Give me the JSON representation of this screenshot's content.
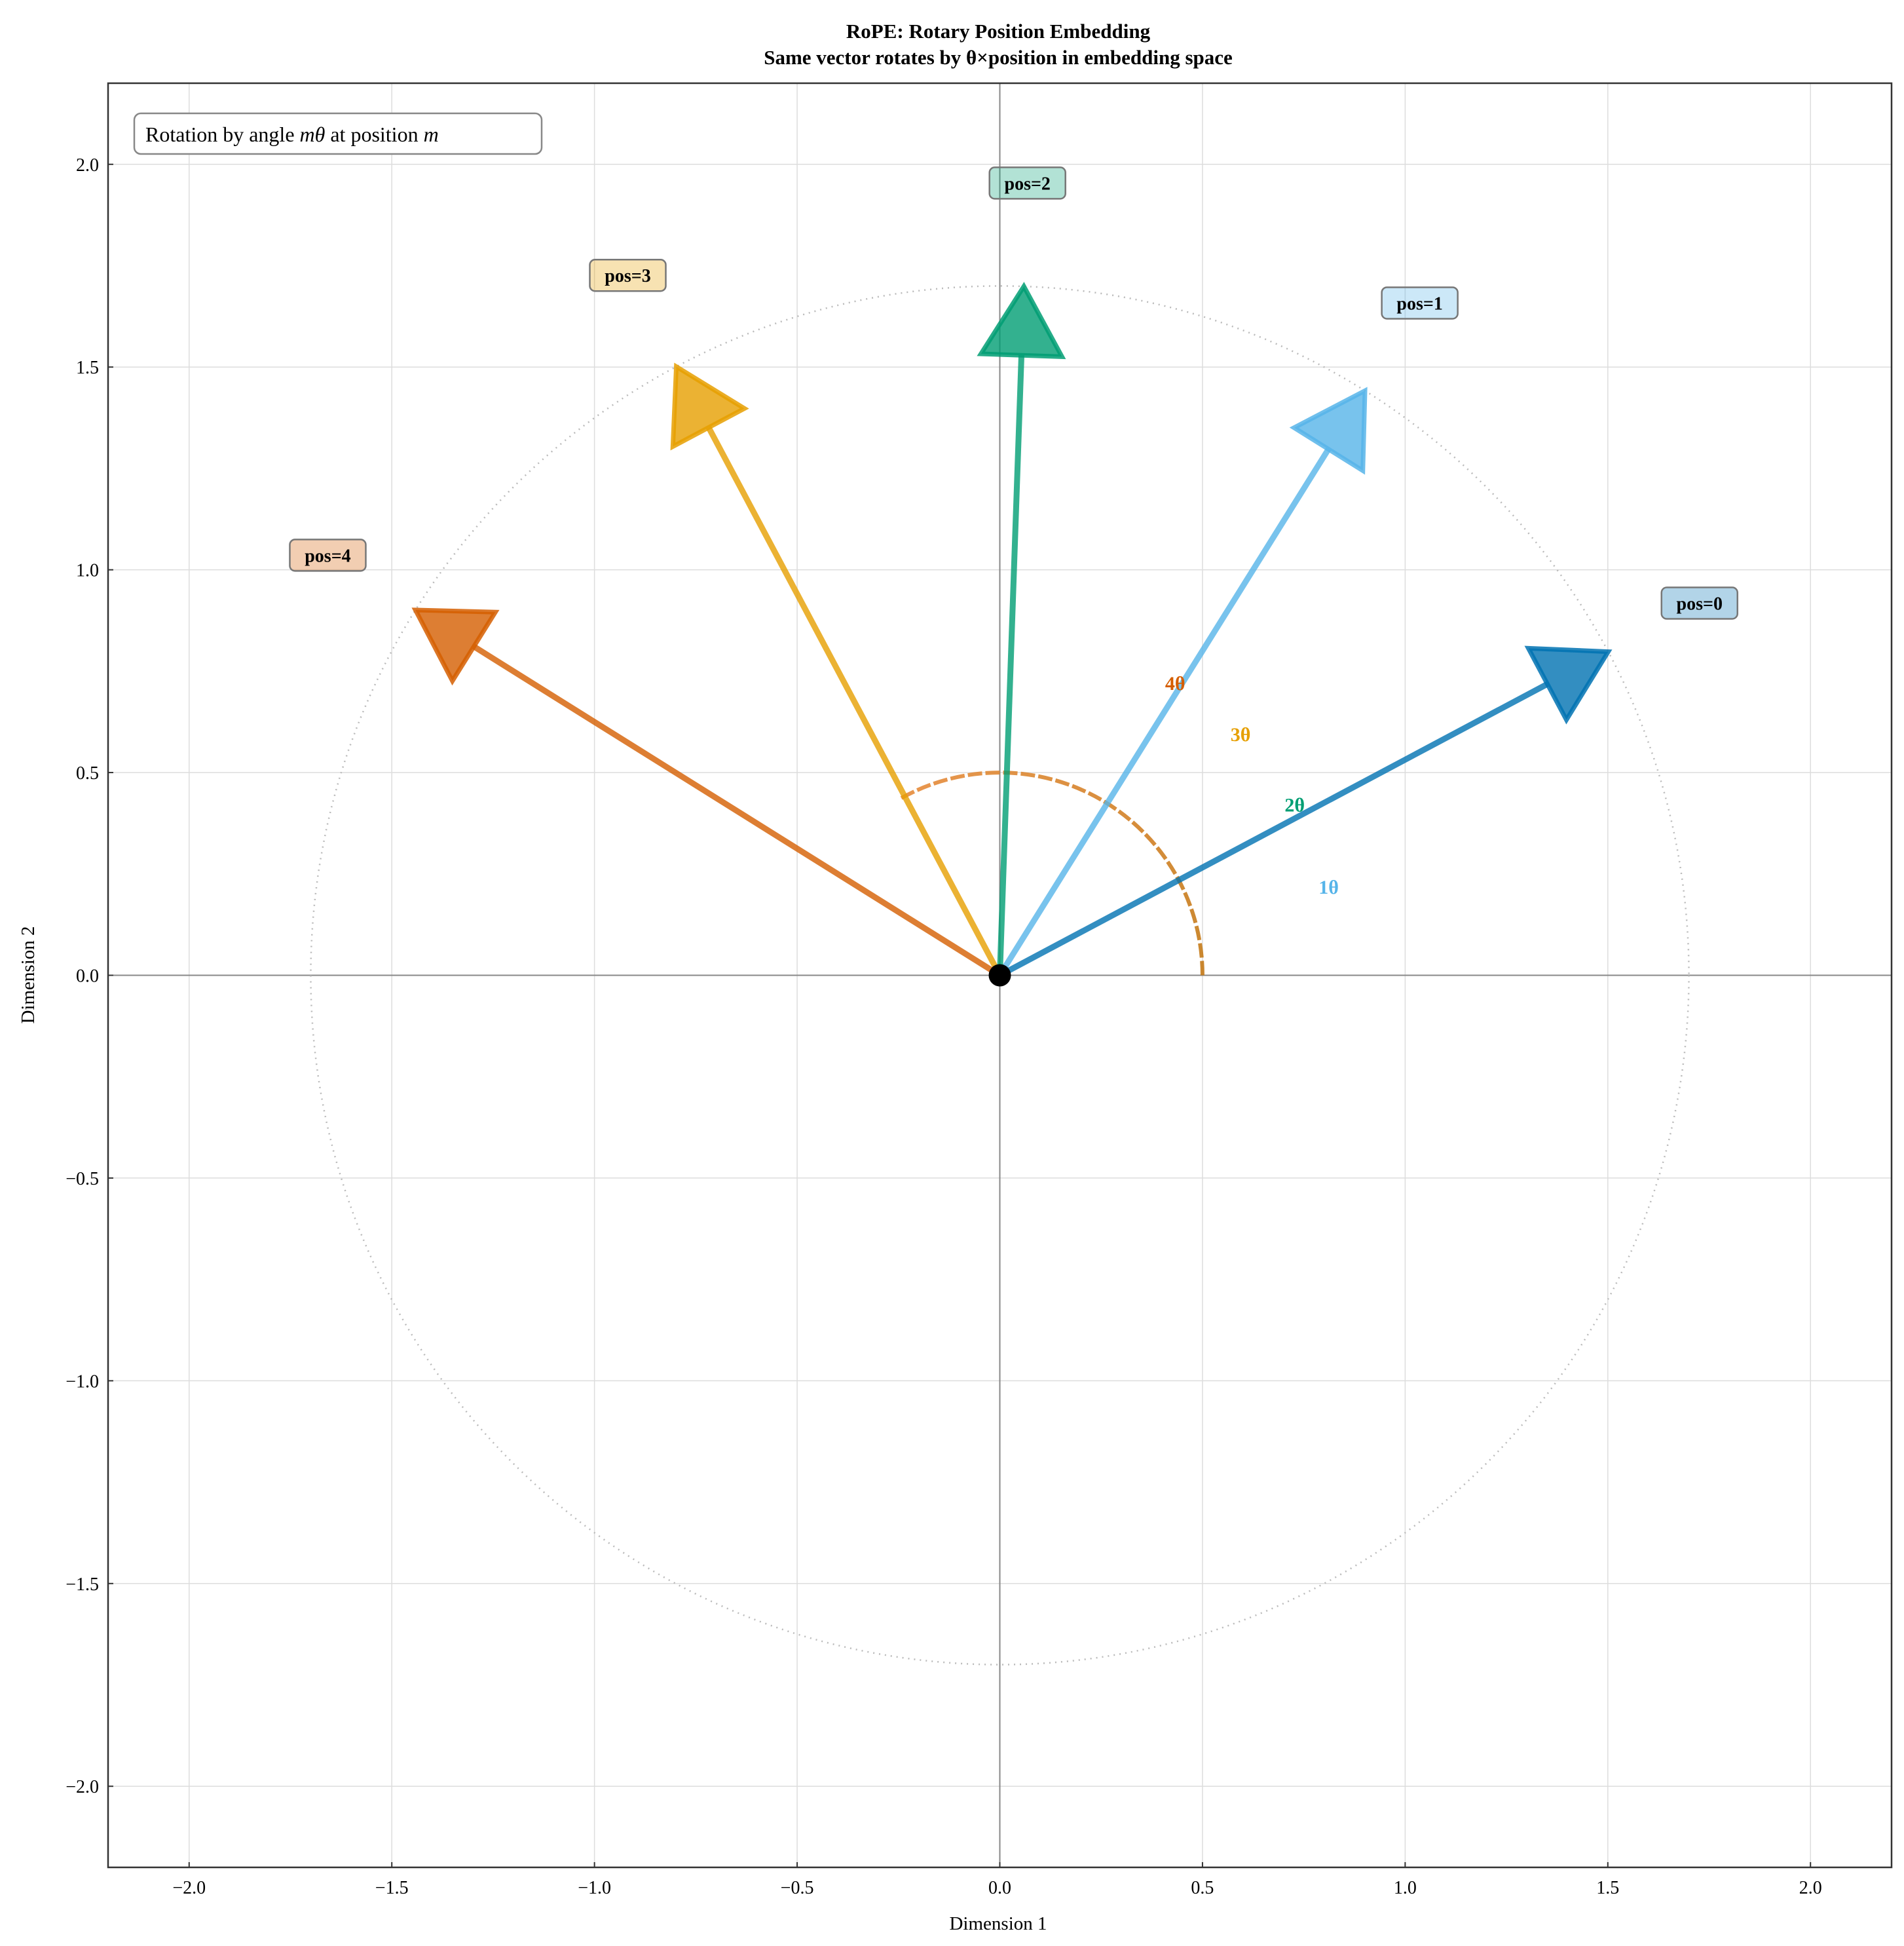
{
  "chart_data": {
    "type": "vector",
    "title": "RoPE: Rotary Position Embedding",
    "subtitle": "Same vector rotates by θ×position in embedding space",
    "xlabel": "Dimension 1",
    "ylabel": "Dimension 2",
    "xlim": [
      -2.2,
      2.2
    ],
    "ylim": [
      -2.2,
      2.2
    ],
    "xticks": [
      "−2.0",
      "−1.5",
      "−1.0",
      "−0.5",
      "0.0",
      "0.5",
      "1.0",
      "1.5",
      "2.0"
    ],
    "yticks": [
      "−2.0",
      "−1.5",
      "−1.0",
      "−0.5",
      "0.0",
      "0.5",
      "1.0",
      "1.5",
      "2.0"
    ],
    "tick_values": [
      -2.0,
      -1.5,
      -1.0,
      -0.5,
      0.0,
      0.5,
      1.0,
      1.5,
      2.0
    ],
    "grid": true,
    "annotation": {
      "prefix": "Rotation by angle ",
      "m1": "m",
      "theta": "θ",
      "mid": " at position ",
      "m2": "m"
    },
    "vector_magnitude": 1.7,
    "base_angle_deg": 28,
    "theta_deg": 30,
    "vectors": [
      {
        "label": "pos=0",
        "angle_deg": 28,
        "color": "#0072B2"
      },
      {
        "label": "pos=1",
        "angle_deg": 58,
        "color": "#56B4E9"
      },
      {
        "label": "pos=2",
        "angle_deg": 88,
        "color": "#009E73"
      },
      {
        "label": "pos=3",
        "angle_deg": 118,
        "color": "#E69F00"
      },
      {
        "label": "pos=4",
        "angle_deg": 148,
        "color": "#D55E00"
      }
    ],
    "angle_labels": [
      {
        "text": "1θ",
        "color": "#56B4E9",
        "angle_deg": 15
      },
      {
        "text": "2θ",
        "color": "#009E73",
        "angle_deg": 30
      },
      {
        "text": "3θ",
        "color": "#E69F00",
        "angle_deg": 45
      },
      {
        "text": "4θ",
        "color": "#D55E00",
        "angle_deg": 59
      }
    ],
    "arc": {
      "radius": 0.5,
      "start_deg": 0,
      "end_deg": 120
    },
    "reference_circle_radius": 1.7
  }
}
